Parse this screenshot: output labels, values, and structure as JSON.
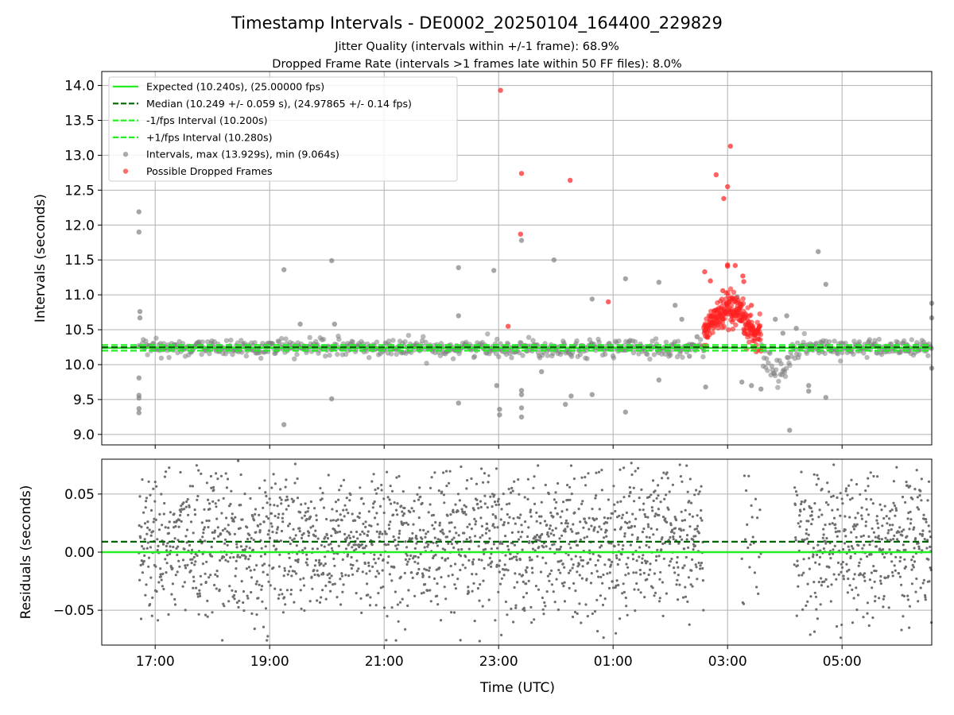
{
  "figure": {
    "title": "Timestamp Intervals - DE0002_20250104_164400_229829",
    "subtitle_1": "Jitter Quality (intervals within +/-1 frame): 68.9%",
    "subtitle_2": "Dropped Frame Rate (intervals >1 frames late within 50 FF files): 8.0%"
  },
  "colors": {
    "expected": "#22ee22",
    "median": "#006400",
    "interval_points": "#808080",
    "dropped_points": "#ff2020",
    "grid": "#b0b0b0"
  },
  "chart_data": [
    {
      "type": "scatter",
      "title": "",
      "xlabel": "",
      "ylabel": "Intervals (seconds)",
      "xlim": [
        "16:04",
        "06:34"
      ],
      "ylim": [
        8.85,
        14.2
      ],
      "yticks": [
        "9.0",
        "9.5",
        "10.0",
        "10.5",
        "11.0",
        "11.5",
        "12.0",
        "12.5",
        "13.0",
        "13.5",
        "14.0"
      ],
      "grid": true,
      "legend_position": "top-left",
      "legend": [
        {
          "label": "Expected (10.240s), (25.00000 fps)",
          "style": "solid-line",
          "color": "#22ee22"
        },
        {
          "label": "Median (10.249 +/- 0.059 s), (24.97865 +/- 0.14 fps)",
          "style": "dashed-line",
          "color": "#006400"
        },
        {
          "label": "-1/fps Interval (10.200s)",
          "style": "dashed-line",
          "color": "#22ee22"
        },
        {
          "label": "+1/fps Interval (10.280s)",
          "style": "dashed-line",
          "color": "#22ee22"
        },
        {
          "label": "Intervals, max (13.929s), min (9.064s)",
          "style": "marker",
          "color": "#808080"
        },
        {
          "label": "Possible Dropped Frames",
          "style": "marker",
          "color": "#ff2020"
        }
      ],
      "reference_lines": {
        "expected": 10.24,
        "median": 10.249,
        "minus_one_fps": 10.2,
        "plus_one_fps": 10.28
      },
      "series": [
        {
          "name": "Intervals, max (13.929s), min (9.064s)",
          "points": [
            [
              "16:43",
              12.19
            ],
            [
              "16:43",
              11.9
            ],
            [
              "16:44",
              10.76
            ],
            [
              "16:44",
              10.67
            ],
            [
              "16:43",
              9.81
            ],
            [
              "16:43",
              9.56
            ],
            [
              "16:43",
              9.52
            ],
            [
              "16:43",
              9.37
            ],
            [
              "16:43",
              9.31
            ],
            [
              "19:15",
              11.36
            ],
            [
              "19:15",
              9.14
            ],
            [
              "19:32",
              10.58
            ],
            [
              "20:05",
              11.49
            ],
            [
              "20:05",
              9.51
            ],
            [
              "20:08",
              10.58
            ],
            [
              "22:18",
              11.39
            ],
            [
              "22:18",
              9.45
            ],
            [
              "22:18",
              10.7
            ],
            [
              "22:55",
              11.35
            ],
            [
              "22:58",
              9.7
            ],
            [
              "23:01",
              9.36
            ],
            [
              "23:01",
              9.28
            ],
            [
              "23:24",
              11.78
            ],
            [
              "23:24",
              9.63
            ],
            [
              "23:24",
              9.57
            ],
            [
              "23:24",
              9.38
            ],
            [
              "23:24",
              9.25
            ],
            [
              "23:45",
              9.9
            ],
            [
              "23:58",
              11.5
            ],
            [
              "00:10",
              9.43
            ],
            [
              "00:16",
              9.55
            ],
            [
              "00:38",
              10.94
            ],
            [
              "00:38",
              9.57
            ],
            [
              "01:13",
              11.23
            ],
            [
              "01:13",
              9.32
            ],
            [
              "01:48",
              11.18
            ],
            [
              "01:48",
              9.78
            ],
            [
              "02:05",
              10.85
            ],
            [
              "02:12",
              10.65
            ],
            [
              "02:20",
              10.12
            ],
            [
              "02:28",
              10.4
            ],
            [
              "02:35",
              10.2
            ],
            [
              "02:37",
              9.68
            ],
            [
              "03:10",
              10.97
            ],
            [
              "03:15",
              9.75
            ],
            [
              "03:25",
              9.7
            ],
            [
              "03:35",
              9.65
            ],
            [
              "03:50",
              10.65
            ],
            [
              "03:58",
              10.45
            ],
            [
              "04:02",
              10.7
            ],
            [
              "04:05",
              9.06
            ],
            [
              "04:12",
              10.52
            ],
            [
              "04:25",
              9.62
            ],
            [
              "04:25",
              9.7
            ],
            [
              "04:35",
              11.62
            ],
            [
              "04:43",
              11.15
            ],
            [
              "04:43",
              9.53
            ],
            [
              "06:34",
              10.88
            ],
            [
              "06:34",
              10.67
            ],
            [
              "06:34",
              9.95
            ]
          ]
        },
        {
          "name": "Possible Dropped Frames",
          "points": [
            [
              "23:02",
              13.93
            ],
            [
              "23:24",
              12.74
            ],
            [
              "23:23",
              11.87
            ],
            [
              "23:10",
              10.55
            ],
            [
              "00:15",
              12.64
            ],
            [
              "00:55",
              10.9
            ],
            [
              "02:36",
              11.33
            ],
            [
              "02:42",
              11.2
            ],
            [
              "02:48",
              12.72
            ],
            [
              "02:56",
              12.38
            ],
            [
              "03:00",
              12.55
            ],
            [
              "03:03",
              13.13
            ],
            [
              "03:00",
              11.43
            ],
            [
              "03:00",
              11.41
            ],
            [
              "03:08",
              11.42
            ],
            [
              "03:16",
              11.27
            ],
            [
              "03:17",
              11.19
            ],
            [
              "02:55",
              11.06
            ],
            [
              "03:05",
              10.95
            ],
            [
              "03:25",
              10.85
            ]
          ],
          "dense_cluster": {
            "x_range": [
              "02:35",
              "03:35"
            ],
            "y_range": [
              10.25,
              10.82
            ]
          }
        }
      ]
    },
    {
      "type": "scatter",
      "title": "",
      "xlabel": "Time (UTC)",
      "ylabel": "Residuals (seconds)",
      "xlim": [
        "16:04",
        "06:34"
      ],
      "ylim": [
        -0.08,
        0.08
      ],
      "yticks": [
        "−0.05",
        "0.00",
        "0.05"
      ],
      "xticks": [
        "17:00",
        "19:00",
        "21:00",
        "23:00",
        "01:00",
        "03:00",
        "05:00"
      ],
      "grid": true,
      "reference_lines": {
        "expected": 0.0,
        "median": 0.009
      },
      "series": [
        {
          "name": "",
          "description_segments": [
            {
              "x_range": [
                "16:43",
                "02:35"
              ],
              "y_spread": [
                -0.08,
                0.08
              ]
            },
            {
              "x_range": [
                "03:15",
                "03:35"
              ],
              "y_spread": [
                -0.08,
                0.08
              ]
            },
            {
              "x_range": [
                "04:10",
                "06:34"
              ],
              "y_spread": [
                -0.08,
                0.08
              ]
            }
          ]
        }
      ]
    }
  ]
}
